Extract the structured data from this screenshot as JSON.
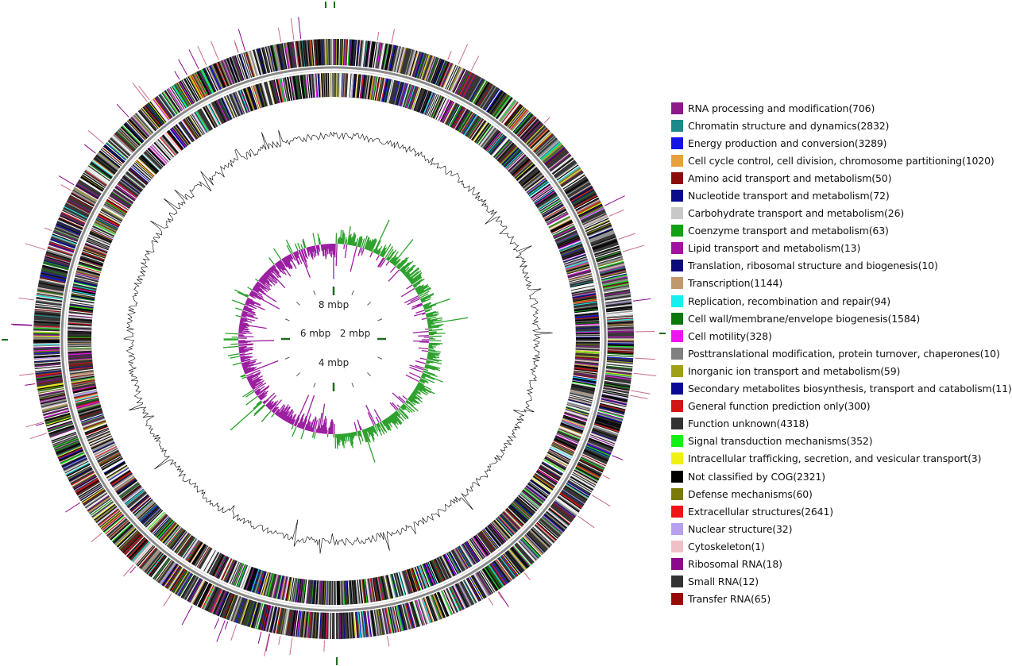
{
  "genome_map": {
    "scale_labels": [
      "8 mbp",
      "2 mbp",
      "4 mbp",
      "6 mbp"
    ],
    "colors": {
      "gc_content": "#000000",
      "gc_skew_positive": "#2ca02c",
      "gc_skew_negative": "#9b1fa0",
      "backbone": "#808080",
      "marker": "#1f6a1f"
    }
  },
  "legend": {
    "items": [
      {
        "label": "RNA processing and modification(706)",
        "color": "#8b1a8b"
      },
      {
        "label": "Chromatin structure and dynamics(2832)",
        "color": "#1a8a8a"
      },
      {
        "label": "Energy production and conversion(3289)",
        "color": "#1414e6"
      },
      {
        "label": "Cell cycle control, cell division, chromosome partitioning(1020)",
        "color": "#e6a03c"
      },
      {
        "label": "Amino acid transport and metabolism(50)",
        "color": "#8b0a0a"
      },
      {
        "label": "Nucleotide transport and metabolism(72)",
        "color": "#0a0a8b"
      },
      {
        "label": "Carbohydrate transport and metabolism(26)",
        "color": "#c8c8c8"
      },
      {
        "label": "Coenzyme transport and metabolism(63)",
        "color": "#14a014"
      },
      {
        "label": "Lipid transport and metabolism(13)",
        "color": "#a014a0"
      },
      {
        "label": "Translation, ribosomal structure and biogenesis(10)",
        "color": "#0a0a78"
      },
      {
        "label": "Transcription(1144)",
        "color": "#c0986c"
      },
      {
        "label": "Replication, recombination and repair(94)",
        "color": "#14f0f0"
      },
      {
        "label": "Cell wall/membrane/envelope biogenesis(1584)",
        "color": "#0a780a"
      },
      {
        "label": "Cell motility(328)",
        "color": "#f014f0"
      },
      {
        "label": "Posttranslational modification, protein turnover, chaperones(10)",
        "color": "#808080"
      },
      {
        "label": "Inorganic ion transport and metabolism(59)",
        "color": "#a0a014"
      },
      {
        "label": "Secondary metabolites biosynthesis, transport and catabolism(11)",
        "color": "#0a0a96"
      },
      {
        "label": "General function prediction only(300)",
        "color": "#d21414"
      },
      {
        "label": "Function unknown(4318)",
        "color": "#333333"
      },
      {
        "label": "Signal transduction mechanisms(352)",
        "color": "#14f014"
      },
      {
        "label": "Intracellular trafficking, secretion, and vesicular transport(3)",
        "color": "#f0f014"
      },
      {
        "label": "Not classified by COG(2321)",
        "color": "#000000"
      },
      {
        "label": "Defense mechanisms(60)",
        "color": "#7a7a0a"
      },
      {
        "label": "Extracellular structures(2641)",
        "color": "#f01414"
      },
      {
        "label": "Nuclear structure(32)",
        "color": "#b8a0f0"
      },
      {
        "label": "Cytoskeleton(1)",
        "color": "#f0c0c8"
      },
      {
        "label": "Ribosomal RNA(18)",
        "color": "#8b0a8b"
      },
      {
        "label": "Small RNA(12)",
        "color": "#333333"
      },
      {
        "label": "Transfer RNA(65)",
        "color": "#960a0a"
      }
    ]
  }
}
